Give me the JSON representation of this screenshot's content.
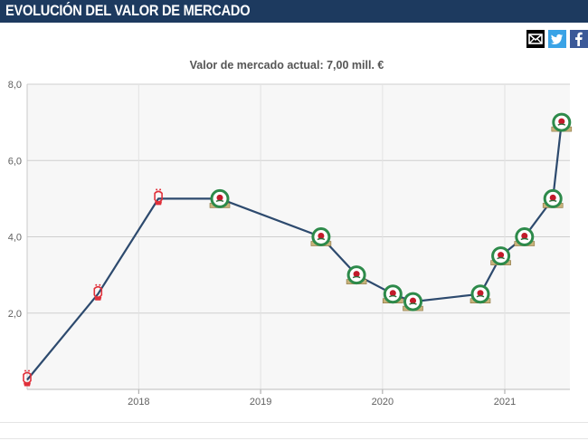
{
  "header": {
    "title": "EVOLUCIÓN DEL VALOR DE MERCADO"
  },
  "share": {
    "mail_icon": "mail-icon",
    "twitter_icon": "twitter-icon",
    "facebook_icon": "facebook-icon"
  },
  "colors": {
    "header_bg": "#1d3a5f",
    "line": "#2d4a6e",
    "grid": "#cfcfcf",
    "plot_bg": "#f7f7f7",
    "club_red": "#e0303a",
    "club_green": "#2d8a4a"
  },
  "chart_data": {
    "type": "line",
    "title": "Valor de mercado actual: 7,00 mill. €",
    "xlabel": "",
    "ylabel": "",
    "ylim": [
      0,
      8
    ],
    "yticks": [
      "2,0",
      "4,0",
      "6,0",
      "8,0"
    ],
    "ytick_values": [
      2,
      4,
      6,
      8
    ],
    "xlim": [
      "2017-02-01",
      "2021-07-15"
    ],
    "xticks": [
      "2018",
      "2019",
      "2020",
      "2021"
    ],
    "xtick_dates": [
      "2018-01-01",
      "2019-01-01",
      "2020-01-01",
      "2021-01-01"
    ],
    "grid": true,
    "series": [
      {
        "points": [
          {
            "date": "2017-02-01",
            "value": 0.25,
            "club": "red"
          },
          {
            "date": "2017-09-01",
            "value": 2.5,
            "club": "red"
          },
          {
            "date": "2018-03-01",
            "value": 5.0,
            "club": "red"
          },
          {
            "date": "2018-09-01",
            "value": 5.0,
            "club": "green"
          },
          {
            "date": "2019-07-01",
            "value": 4.0,
            "club": "green"
          },
          {
            "date": "2019-10-15",
            "value": 3.0,
            "club": "green"
          },
          {
            "date": "2020-02-01",
            "value": 2.5,
            "club": "green"
          },
          {
            "date": "2020-04-01",
            "value": 2.3,
            "club": "green"
          },
          {
            "date": "2020-10-20",
            "value": 2.5,
            "club": "green"
          },
          {
            "date": "2020-12-20",
            "value": 3.5,
            "club": "green"
          },
          {
            "date": "2021-03-01",
            "value": 4.0,
            "club": "green"
          },
          {
            "date": "2021-05-25",
            "value": 5.0,
            "club": "green"
          },
          {
            "date": "2021-06-20",
            "value": 7.0,
            "club": "green"
          }
        ]
      }
    ]
  }
}
